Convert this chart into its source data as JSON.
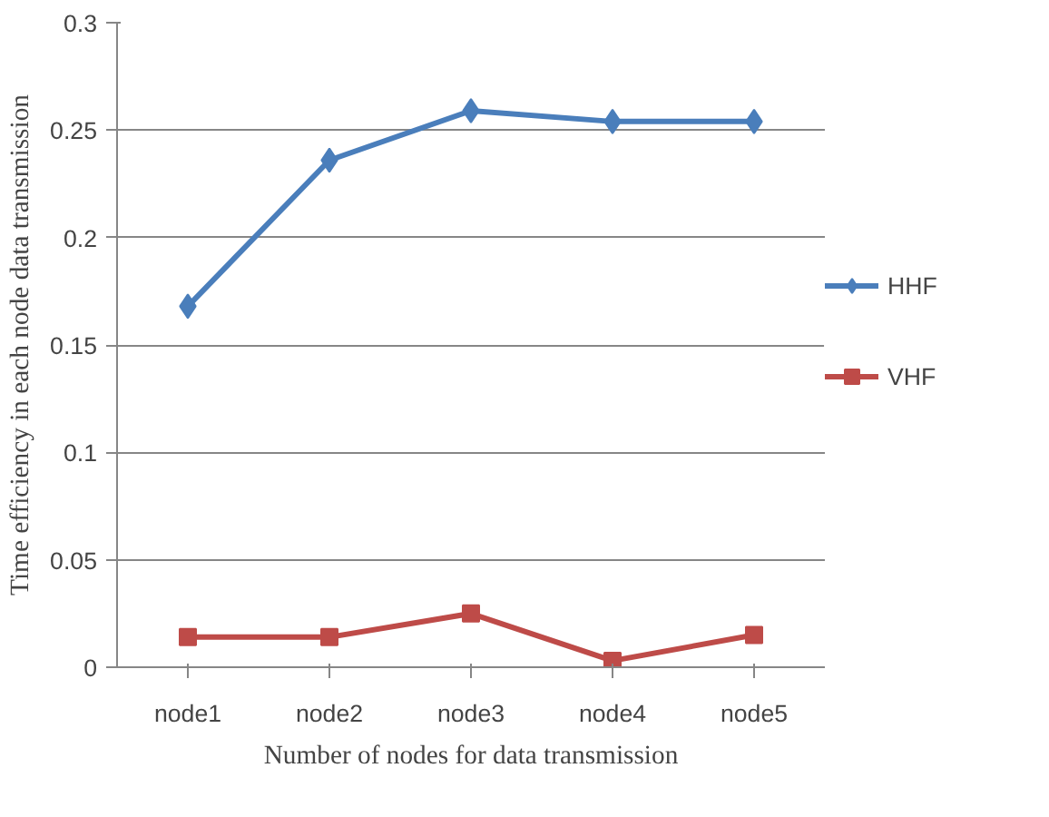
{
  "chart_data": {
    "type": "line",
    "xlabel": "Number of nodes for data transmission",
    "ylabel": "Time efficiency in each node data transmission",
    "categories": [
      "node1",
      "node2",
      "node3",
      "node4",
      "node5"
    ],
    "series": [
      {
        "name": "HHF",
        "color": "#4a7ebb",
        "marker": "diamond",
        "values": [
          0.168,
          0.236,
          0.259,
          0.254,
          0.254
        ]
      },
      {
        "name": "VHF",
        "color": "#be4b48",
        "marker": "square",
        "values": [
          0.014,
          0.014,
          0.025,
          0.003,
          0.015
        ]
      }
    ],
    "ylim": [
      0,
      0.3
    ],
    "yticks": [
      {
        "value": 0,
        "label": "0"
      },
      0.05,
      0.1,
      0.15,
      0.2,
      0.25,
      0.3
    ],
    "grid": "y",
    "legend": "right",
    "line_style": "solid"
  }
}
